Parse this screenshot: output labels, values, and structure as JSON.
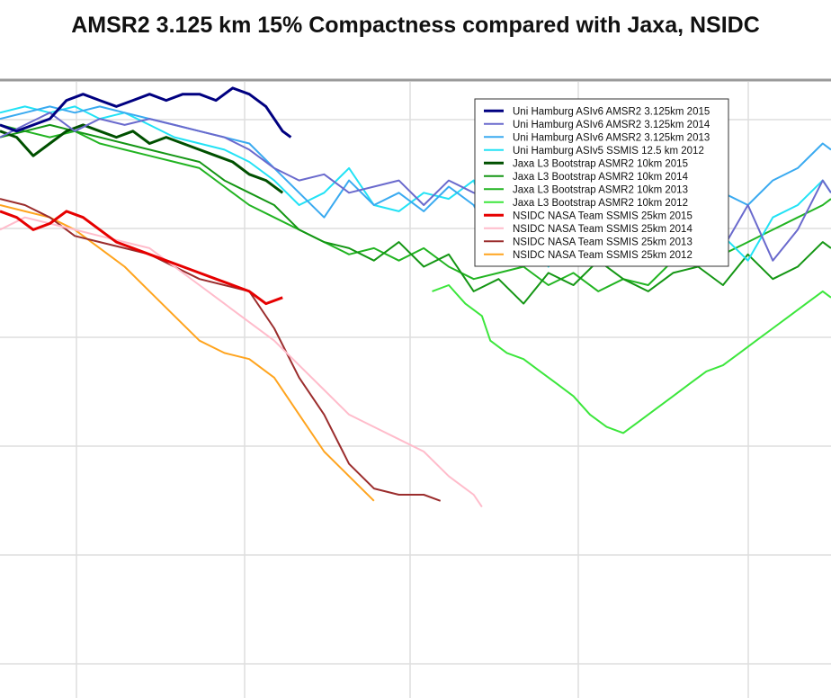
{
  "chart_data": {
    "type": "line",
    "title": "AMSR2 3.125 km 15% Compactness compared with Jaxa, NSIDC",
    "xlabel": "",
    "ylabel": "",
    "grid": true,
    "legend_position": "top-right",
    "x_range": [
      0,
      100
    ],
    "y_range": [
      0,
      100
    ],
    "series": [
      {
        "name": "Uni Hamburg ASIv6 AMSR2 3.125km 2015",
        "color": "#000080",
        "width": 3,
        "x": [
          0,
          2,
          4,
          6,
          8,
          10,
          12,
          14,
          16,
          18,
          20,
          22,
          24,
          26,
          28,
          30,
          32,
          33,
          34,
          35
        ],
        "y": [
          93,
          92,
          93,
          94,
          97,
          98,
          97,
          96,
          97,
          98,
          97,
          98,
          98,
          97,
          99,
          98,
          96,
          94,
          92,
          91
        ]
      },
      {
        "name": "Uni Hamburg ASIv6 AMSR2 3.125km 2014",
        "color": "#6a6acd",
        "width": 2,
        "x": [
          0,
          3,
          6,
          9,
          12,
          15,
          18,
          21,
          24,
          27,
          30,
          33,
          36,
          39,
          42,
          45,
          48,
          51,
          54,
          57,
          60,
          63,
          66,
          69,
          72,
          75,
          78,
          81,
          84,
          87,
          90,
          93,
          96,
          99,
          100
        ],
        "y": [
          91,
          93,
          95,
          92,
          94,
          93,
          94,
          93,
          92,
          91,
          89,
          86,
          84,
          85,
          82,
          83,
          84,
          80,
          84,
          82,
          81,
          78,
          79,
          83,
          75,
          72,
          78,
          74,
          82,
          73,
          80,
          71,
          76,
          84,
          82
        ]
      },
      {
        "name": "Uni Hamburg ASIv6 AMSR2 3.125km 2013",
        "color": "#3aaaf0",
        "width": 2,
        "x": [
          0,
          3,
          6,
          9,
          12,
          15,
          18,
          21,
          24,
          27,
          30,
          33,
          36,
          39,
          42,
          45,
          48,
          51,
          54,
          57,
          60,
          63,
          66,
          69,
          72,
          75,
          78,
          81,
          84,
          87,
          90,
          93,
          96,
          99,
          100
        ],
        "y": [
          94,
          95,
          96,
          95,
          96,
          95,
          94,
          93,
          92,
          91,
          90,
          86,
          82,
          78,
          84,
          80,
          82,
          79,
          83,
          80,
          72,
          77,
          74,
          71,
          76,
          78,
          75,
          80,
          83,
          82,
          80,
          84,
          86,
          90,
          89
        ]
      },
      {
        "name": "Uni Hamburg ASIv5 SSMIS 12.5 km 2012",
        "color": "#22e2f5",
        "width": 2,
        "x": [
          0,
          3,
          6,
          9,
          12,
          15,
          18,
          21,
          24,
          27,
          30,
          33,
          36,
          39,
          42,
          45,
          48,
          51,
          54,
          57,
          60,
          63,
          66,
          69,
          72,
          75,
          78,
          81,
          84,
          87,
          90,
          93,
          96,
          99,
          100
        ],
        "y": [
          95,
          96,
          95,
          96,
          94,
          95,
          93,
          91,
          90,
          89,
          87,
          84,
          80,
          82,
          86,
          80,
          79,
          82,
          81,
          84,
          72,
          78,
          70,
          76,
          73,
          72,
          80,
          74,
          79,
          75,
          71,
          78,
          80,
          84,
          82
        ]
      },
      {
        "name": "Jaxa L3 Bootstrap ASMR2 10km 2015",
        "color": "#005000",
        "width": 3,
        "x": [
          0,
          2,
          4,
          6,
          8,
          10,
          12,
          14,
          16,
          18,
          20,
          22,
          24,
          26,
          28,
          30,
          32,
          34
        ],
        "y": [
          92,
          91,
          88,
          90,
          92,
          93,
          92,
          91,
          92,
          90,
          91,
          90,
          89,
          88,
          87,
          85,
          84,
          82
        ]
      },
      {
        "name": "Jaxa L3 Bootstrap ASMR2 10km 2014",
        "color": "#149614",
        "width": 2,
        "x": [
          0,
          3,
          6,
          9,
          12,
          15,
          18,
          21,
          24,
          27,
          30,
          33,
          36,
          39,
          42,
          45,
          48,
          51,
          54,
          57,
          60,
          63,
          66,
          69,
          72,
          75,
          78,
          81,
          84,
          87,
          90,
          93,
          96,
          99,
          100
        ],
        "y": [
          91,
          92,
          93,
          92,
          91,
          90,
          89,
          88,
          87,
          84,
          82,
          80,
          76,
          74,
          73,
          71,
          74,
          70,
          72,
          66,
          68,
          64,
          69,
          67,
          71,
          68,
          66,
          69,
          70,
          67,
          72,
          68,
          70,
          74,
          73
        ]
      },
      {
        "name": "Jaxa L3 Bootstrap ASMR2 10km 2013",
        "color": "#22b422",
        "width": 2,
        "x": [
          0,
          3,
          6,
          9,
          12,
          15,
          18,
          21,
          24,
          27,
          30,
          33,
          36,
          39,
          42,
          45,
          48,
          51,
          54,
          57,
          60,
          63,
          66,
          69,
          72,
          75,
          78,
          81,
          84,
          87,
          90,
          93,
          96,
          99,
          100
        ],
        "y": [
          93,
          92,
          91,
          92,
          90,
          89,
          88,
          87,
          86,
          83,
          80,
          78,
          76,
          74,
          72,
          73,
          71,
          73,
          70,
          68,
          69,
          70,
          67,
          69,
          66,
          68,
          67,
          71,
          70,
          72,
          74,
          76,
          78,
          80,
          81
        ]
      },
      {
        "name": "Jaxa L3 Bootstrap ASMR2 10km 2012",
        "color": "#3ce63c",
        "width": 2,
        "x": [
          52,
          54,
          56,
          58,
          59,
          61,
          63,
          65,
          67,
          69,
          71,
          73,
          75,
          77,
          79,
          81,
          83,
          85,
          87,
          89,
          91,
          93,
          95,
          97,
          99,
          100
        ],
        "y": [
          66,
          67,
          64,
          62,
          58,
          56,
          55,
          53,
          51,
          49,
          46,
          44,
          43,
          45,
          47,
          49,
          51,
          53,
          54,
          56,
          58,
          60,
          62,
          64,
          66,
          65
        ]
      },
      {
        "name": "NSIDC NASA Team SSMIS 25km 2015",
        "color": "#e60000",
        "width": 3,
        "x": [
          0,
          2,
          4,
          6,
          8,
          10,
          12,
          14,
          16,
          18,
          20,
          22,
          24,
          26,
          28,
          30,
          32,
          34
        ],
        "y": [
          79,
          78,
          76,
          77,
          79,
          78,
          76,
          74,
          73,
          72,
          71,
          70,
          69,
          68,
          67,
          66,
          64,
          65
        ]
      },
      {
        "name": "NSIDC NASA Team SSMIS 25km 2014",
        "color": "#ffbccb",
        "width": 2,
        "x": [
          0,
          3,
          6,
          9,
          12,
          15,
          18,
          21,
          24,
          27,
          30,
          33,
          36,
          39,
          42,
          45,
          48,
          51,
          54,
          57,
          58
        ],
        "y": [
          76,
          78,
          77,
          76,
          75,
          74,
          73,
          70,
          67,
          64,
          61,
          58,
          54,
          50,
          46,
          44,
          42,
          40,
          36,
          33,
          31
        ]
      },
      {
        "name": "NSIDC NASA Team SSMIS 25km 2013",
        "color": "#9b2d2d",
        "width": 2,
        "x": [
          0,
          3,
          6,
          9,
          12,
          15,
          18,
          21,
          24,
          27,
          30,
          33,
          36,
          39,
          42,
          45,
          48,
          51,
          53
        ],
        "y": [
          81,
          80,
          78,
          75,
          74,
          73,
          72,
          70,
          68,
          67,
          66,
          60,
          52,
          46,
          38,
          34,
          33,
          33,
          32
        ]
      },
      {
        "name": "NSIDC NASA Team SSMIS 25km 2012",
        "color": "#ffa41e",
        "width": 2,
        "x": [
          0,
          3,
          6,
          9,
          12,
          15,
          18,
          21,
          24,
          27,
          30,
          33,
          36,
          39,
          42,
          45
        ],
        "y": [
          80,
          79,
          78,
          76,
          73,
          70,
          66,
          62,
          58,
          56,
          55,
          52,
          46,
          40,
          36,
          32
        ]
      }
    ]
  }
}
